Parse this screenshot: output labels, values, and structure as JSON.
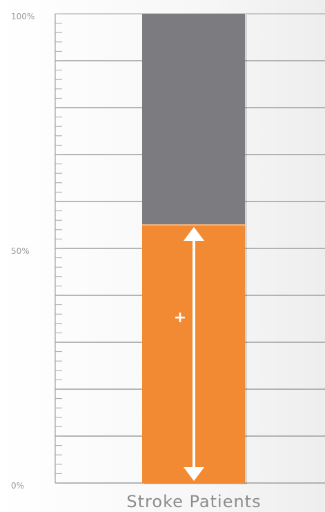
{
  "chart_data": {
    "type": "bar",
    "stacked": true,
    "categories": [
      "Stroke Patients"
    ],
    "series": [
      {
        "values": [
          55
        ]
      },
      {
        "values": [
          45
        ]
      }
    ],
    "ylim": [
      0,
      100
    ],
    "yticks": [
      "0%",
      "50%",
      "100%"
    ],
    "annotation": "+",
    "grid": true,
    "colors": {
      "lower": "#f28a33",
      "upper": "#7c7c80",
      "grid": "#9e9e9e",
      "arrow": "#ffffff"
    }
  }
}
